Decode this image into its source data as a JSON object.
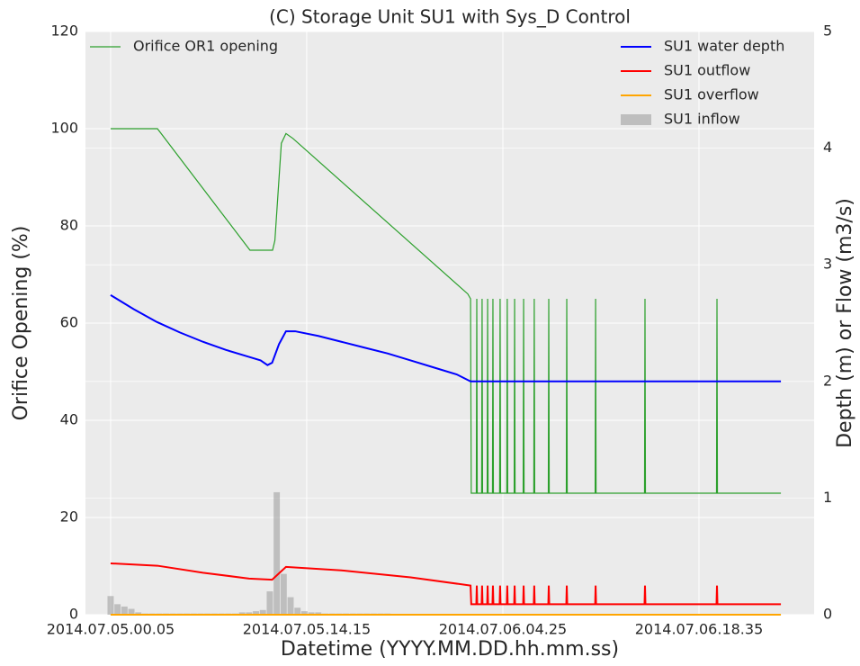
{
  "chart_data": {
    "type": "line",
    "title": "(C) Storage Unit SU1 with Sys_D Control",
    "xlabel": "Datetime (YYYY.MM.DD.hh.mm.ss)",
    "ylabel": "Orifice Opening (%)",
    "y2label": "Depth (m) or Flow (m3/s)",
    "xlim": [
      -109,
      3049
    ],
    "xticks": [
      {
        "value": 0,
        "label": "2014.07.05.00.05"
      },
      {
        "value": 850,
        "label": "2014.07.05.14.15"
      },
      {
        "value": 1700,
        "label": "2014.07.06.04.25"
      },
      {
        "value": 2550,
        "label": "2014.07.06.18.35"
      }
    ],
    "ylim": [
      0,
      120
    ],
    "yticks": [
      0,
      20,
      40,
      60,
      80,
      100,
      120
    ],
    "y2lim": [
      0,
      5
    ],
    "y2ticks": [
      0,
      1,
      2,
      3,
      4,
      5
    ],
    "grid": true,
    "legend": {
      "y": "upper left",
      "y2": "upper right"
    },
    "series": [
      {
        "name": "Orifice OR1 opening",
        "color": "#2ca02c",
        "axis": "y",
        "type": "line",
        "x": [
          0,
          203,
          604,
          702,
          712,
          740,
          760,
          790,
          1548,
          1560,
          1563,
          1585,
          1587,
          1589,
          1608,
          1610,
          1612,
          1632,
          1634,
          1636,
          1655,
          1657,
          1659,
          1686,
          1688,
          1690,
          1717,
          1719,
          1721,
          1749,
          1751,
          1753,
          1788,
          1790,
          1792,
          1834,
          1836,
          1838,
          1897,
          1899,
          1901,
          1975,
          1977,
          1979,
          2100,
          2102,
          2104,
          2314,
          2316,
          2318,
          2626,
          2628,
          2630,
          2905
        ],
        "values": [
          100,
          100,
          75,
          75,
          77,
          97,
          99,
          98,
          66,
          65,
          25,
          25,
          65,
          25,
          25,
          65,
          25,
          25,
          65,
          25,
          25,
          65,
          25,
          25,
          65,
          25,
          25,
          65,
          25,
          25,
          65,
          25,
          25,
          65,
          25,
          25,
          65,
          25,
          25,
          65,
          25,
          25,
          65,
          25,
          25,
          65,
          25,
          25,
          65,
          25,
          25,
          65,
          25,
          25
        ]
      },
      {
        "name": "SU1 water depth",
        "color": "#0000ff",
        "axis": "y2",
        "type": "line",
        "x": [
          0,
          100,
          200,
          300,
          400,
          500,
          600,
          650,
          680,
          700,
          730,
          760,
          800,
          900,
          1000,
          1100,
          1200,
          1300,
          1400,
          1500,
          1560,
          2905
        ],
        "values": [
          2.74,
          2.62,
          2.51,
          2.42,
          2.34,
          2.27,
          2.21,
          2.18,
          2.14,
          2.16,
          2.32,
          2.43,
          2.43,
          2.39,
          2.34,
          2.29,
          2.24,
          2.18,
          2.12,
          2.06,
          2.0,
          2.0
        ]
      },
      {
        "name": "SU1 outflow",
        "color": "#ff0000",
        "axis": "y2",
        "type": "line",
        "x": [
          0,
          203,
          400,
          600,
          700,
          760,
          1000,
          1300,
          1560,
          1563,
          1585,
          1587,
          1589,
          1608,
          1610,
          1612,
          1632,
          1634,
          1636,
          1655,
          1657,
          1659,
          1686,
          1688,
          1690,
          1717,
          1719,
          1721,
          1749,
          1751,
          1753,
          1788,
          1790,
          1792,
          1834,
          1836,
          1838,
          1897,
          1899,
          1901,
          1975,
          1977,
          1979,
          2100,
          2102,
          2104,
          2314,
          2316,
          2318,
          2626,
          2628,
          2630,
          2905
        ],
        "values": [
          0.44,
          0.42,
          0.36,
          0.31,
          0.3,
          0.41,
          0.38,
          0.32,
          0.25,
          0.09,
          0.09,
          0.25,
          0.09,
          0.09,
          0.25,
          0.09,
          0.09,
          0.25,
          0.09,
          0.09,
          0.25,
          0.09,
          0.09,
          0.25,
          0.09,
          0.09,
          0.25,
          0.09,
          0.09,
          0.25,
          0.09,
          0.09,
          0.25,
          0.09,
          0.09,
          0.25,
          0.09,
          0.09,
          0.25,
          0.09,
          0.09,
          0.25,
          0.09,
          0.09,
          0.25,
          0.09,
          0.09,
          0.25,
          0.09,
          0.09,
          0.25,
          0.09,
          0.09
        ]
      },
      {
        "name": "SU1 overflow",
        "color": "#ffa500",
        "axis": "y2",
        "type": "line",
        "x": [
          0,
          2905
        ],
        "values": [
          0,
          0
        ]
      },
      {
        "name": "SU1 inflow",
        "color": "#a0a0a0",
        "axis": "y2",
        "type": "bar",
        "x": [
          0,
          30,
          60,
          90,
          120,
          150,
          180,
          210,
          240,
          270,
          300,
          330,
          360,
          390,
          420,
          450,
          480,
          510,
          540,
          570,
          600,
          630,
          660,
          690,
          720,
          750,
          780,
          810,
          840,
          870,
          900,
          930,
          960,
          990,
          1020,
          1050,
          1080,
          1110,
          1140,
          1170,
          1200
        ],
        "values": [
          0.16,
          0.09,
          0.07,
          0.05,
          0.02,
          0.01,
          0.01,
          0.01,
          0.01,
          0.01,
          0.01,
          0.01,
          0.01,
          0.01,
          0.01,
          0.01,
          0.01,
          0.01,
          0.01,
          0.02,
          0.02,
          0.03,
          0.04,
          0.2,
          1.05,
          0.35,
          0.15,
          0.06,
          0.03,
          0.02,
          0.02,
          0.01,
          0.01,
          0.01,
          0.01,
          0.01,
          0.01,
          0.01,
          0.01,
          0.01,
          0.01
        ]
      }
    ]
  }
}
